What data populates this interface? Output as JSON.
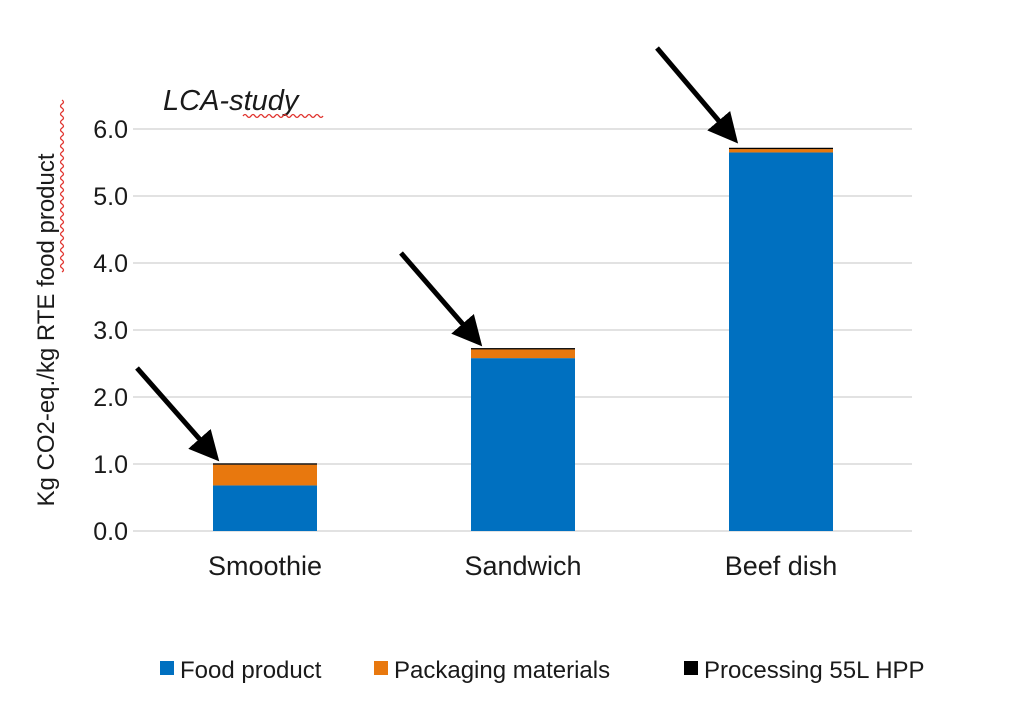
{
  "chart_data": {
    "type": "bar",
    "stacked": true,
    "annotation": "LCA-study",
    "categories": [
      "Smoothie",
      "Sandwich",
      "Beef dish"
    ],
    "ylabel": "Kg CO2-eq./kg RTE food product",
    "ylim": [
      0,
      6.0
    ],
    "yticks": [
      "0.0",
      "1.0",
      "2.0",
      "3.0",
      "4.0",
      "5.0",
      "6.0"
    ],
    "grid": true,
    "legend_position": "bottom",
    "series": [
      {
        "name": "Food product",
        "color": "#0070c0",
        "values": [
          0.68,
          2.58,
          5.65
        ]
      },
      {
        "name": "Packaging materials",
        "color": "#e8780e",
        "values": [
          0.31,
          0.13,
          0.05
        ]
      },
      {
        "name": "Processing 55L HPP",
        "color": "#000000",
        "values": [
          0.02,
          0.02,
          0.02
        ]
      }
    ],
    "arrows": "black arrows pointing to the top of each bar (processing contribution)"
  }
}
